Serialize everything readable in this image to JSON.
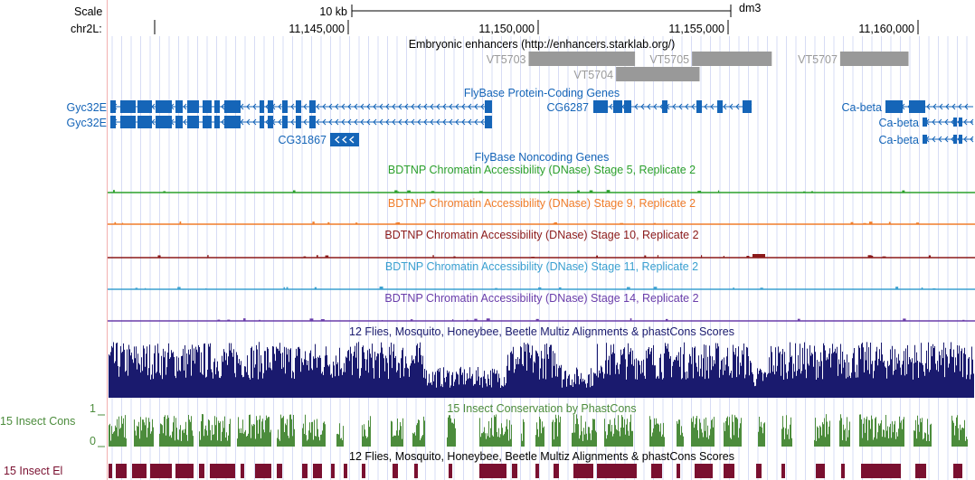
{
  "ruler": {
    "scale_label": "Scale",
    "chrom_label": "chr2L:",
    "scale_bar_text": "10 kb",
    "assembly": "dm3",
    "positions": [
      {
        "label": "11,145,000",
        "coord": 11145000
      },
      {
        "label": "11,150,000",
        "coord": 11150000
      },
      {
        "label": "11,155,000",
        "coord": 11155000
      },
      {
        "label": "11,160,000",
        "coord": 11160000
      }
    ]
  },
  "enhancers": {
    "title": "Embryonic enhancers (http://enhancers.starklab.org/)",
    "items": [
      {
        "name": "VT5703",
        "start": 11149750,
        "end": 11152550
      },
      {
        "name": "VT5705",
        "start": 11154050,
        "end": 11156150
      },
      {
        "name": "VT5704",
        "start": 11152050,
        "end": 11154250
      },
      {
        "name": "VT5707",
        "start": 11157950,
        "end": 11159750
      }
    ]
  },
  "genes": {
    "title": "FlyBase Protein-Coding Genes",
    "noncoding_title": "FlyBase Noncoding Genes",
    "items": [
      {
        "name": "Gyc32E",
        "strand": "-",
        "start": 11140050,
        "end": 11150050
      },
      {
        "name": "Gyc32E",
        "strand": "-",
        "start": 11140050,
        "end": 11150050
      },
      {
        "name": "CG31867",
        "strand": "-",
        "start": 11146100,
        "end": 11146800
      },
      {
        "name": "CG6287",
        "strand": "-",
        "start": 11151800,
        "end": 11155600
      },
      {
        "name": "Ca-beta",
        "strand": "-",
        "start": 11159300,
        "end": 11161700
      },
      {
        "name": "Ca-beta",
        "strand": "-",
        "start": 11160050,
        "end": 11161700
      },
      {
        "name": "Ca-beta",
        "strand": "-",
        "start": 11160050,
        "end": 11161700
      }
    ]
  },
  "dnase_tracks": [
    {
      "title": "BDTNP Chromatin Accessibility (DNase) Stage 5, Replicate 2",
      "color": "#2ca02c"
    },
    {
      "title": "BDTNP Chromatin Accessibility (DNase) Stage 9, Replicate 2",
      "color": "#f07d2a"
    },
    {
      "title": "BDTNP Chromatin Accessibility (DNase) Stage 10, Replicate 2",
      "color": "#8b1a1a"
    },
    {
      "title": "BDTNP Chromatin Accessibility (DNase) Stage 11, Replicate 2",
      "color": "#3aa0d0"
    },
    {
      "title": "BDTNP Chromatin Accessibility (DNase) Stage 14, Replicate 2",
      "color": "#6a3daa"
    }
  ],
  "multiz": {
    "title": "12 Flies, Mosquito, Honeybee, Beetle Multiz Alignments & phastCons Scores",
    "color": "#1a1a6e"
  },
  "phastcons": {
    "title": "15 Insect Conservation by PhastCons",
    "left_label": "15 Insect Cons",
    "y_max": "1",
    "y_min": "0",
    "color": "#4c8c3c"
  },
  "elements": {
    "title": "12 Flies, Mosquito, Honeybee, Beetle Multiz Alignments & phastCons Scores",
    "left_label": "15 Insect El",
    "color": "#7a1030"
  },
  "colors": {
    "gene": "#1565b8",
    "enhancer": "#999999",
    "enhancer_label": "#9a9a9a",
    "gridline": "#d7dcf5",
    "left_margin_line": "#f3b0b0"
  }
}
